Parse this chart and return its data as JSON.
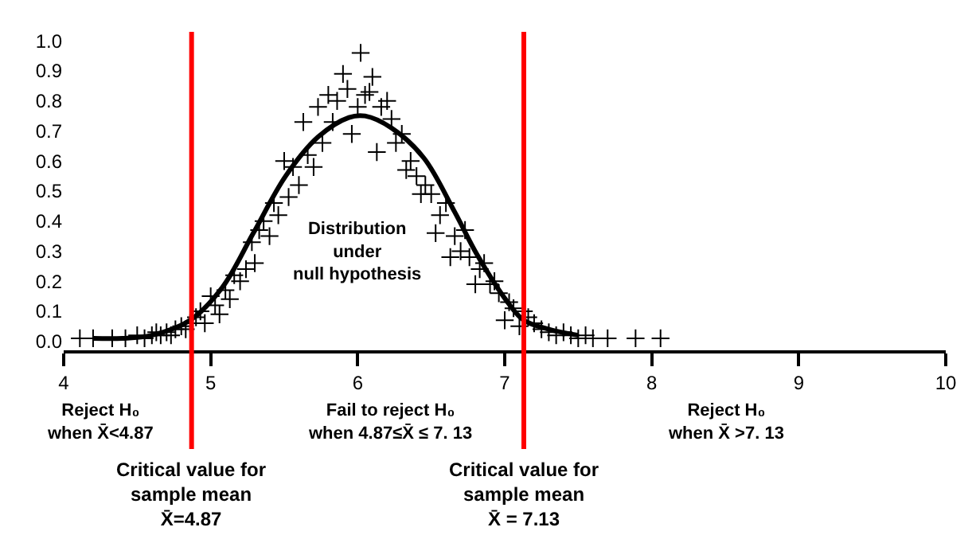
{
  "chart_data": {
    "type": "scatter",
    "series": [
      {
        "color": "#000000",
        "marker": "cross",
        "x": [
          4.11,
          4.2,
          4.33,
          4.42,
          4.5,
          4.55,
          4.6,
          4.63,
          4.66,
          4.7,
          4.73,
          4.76,
          4.8,
          4.83,
          4.86,
          4.9,
          4.93,
          4.96,
          5.0,
          5.03,
          5.06,
          5.1,
          5.13,
          5.16,
          5.2,
          5.24,
          5.28,
          5.3,
          5.33,
          5.36,
          5.4,
          5.43,
          5.46,
          5.5,
          5.53,
          5.56,
          5.6,
          5.63,
          5.66,
          5.7,
          5.73,
          5.76,
          5.8,
          5.83,
          5.86,
          5.9,
          5.93,
          5.96,
          6.0,
          6.02,
          6.05,
          6.08,
          6.1,
          6.13,
          6.16,
          6.2,
          6.23,
          6.26,
          6.3,
          6.33,
          6.36,
          6.4,
          6.43,
          6.46,
          6.5,
          6.53,
          6.56,
          6.6,
          6.63,
          6.66,
          6.7,
          6.73,
          6.76,
          6.8,
          6.83,
          6.86,
          6.9,
          6.93,
          6.96,
          7.0,
          7.03,
          7.06,
          7.1,
          7.13,
          7.16,
          7.2,
          7.25,
          7.3,
          7.35,
          7.4,
          7.45,
          7.5,
          7.55,
          7.6,
          7.7,
          7.89,
          8.06
        ],
        "values": [
          0.01,
          0.01,
          0.01,
          0.01,
          0.02,
          0.01,
          0.02,
          0.03,
          0.02,
          0.03,
          0.02,
          0.04,
          0.05,
          0.04,
          0.06,
          0.08,
          0.1,
          0.06,
          0.15,
          0.12,
          0.09,
          0.17,
          0.14,
          0.22,
          0.2,
          0.24,
          0.33,
          0.26,
          0.37,
          0.4,
          0.35,
          0.46,
          0.42,
          0.6,
          0.48,
          0.58,
          0.52,
          0.73,
          0.62,
          0.58,
          0.78,
          0.66,
          0.82,
          0.73,
          0.8,
          0.89,
          0.84,
          0.69,
          0.78,
          0.96,
          0.82,
          0.83,
          0.88,
          0.63,
          0.78,
          0.8,
          0.74,
          0.66,
          0.69,
          0.57,
          0.6,
          0.55,
          0.49,
          0.52,
          0.49,
          0.36,
          0.42,
          0.46,
          0.28,
          0.35,
          0.3,
          0.37,
          0.28,
          0.19,
          0.24,
          0.26,
          0.19,
          0.2,
          0.16,
          0.07,
          0.13,
          0.11,
          0.05,
          0.1,
          0.08,
          0.06,
          0.04,
          0.03,
          0.02,
          0.03,
          0.02,
          0.01,
          0.02,
          0.01,
          0.01,
          0.01,
          0.01
        ]
      },
      {
        "type": "line",
        "color": "#000000",
        "marker": "none",
        "line_style": "solid",
        "x": [
          4.2,
          4.4,
          4.6,
          4.86,
          5.08,
          5.29,
          5.51,
          5.73,
          5.94,
          6.05,
          6.23,
          6.45,
          6.66,
          6.81,
          7.02,
          7.13,
          7.3,
          7.5
        ],
        "values": [
          0.01,
          0.01,
          0.02,
          0.07,
          0.18,
          0.36,
          0.55,
          0.68,
          0.745,
          0.75,
          0.71,
          0.61,
          0.43,
          0.29,
          0.13,
          0.07,
          0.04,
          0.02
        ]
      }
    ],
    "xlim": [
      4,
      10
    ],
    "xticks": [
      4,
      5,
      6,
      7,
      8,
      9,
      10
    ],
    "ylim": [
      -0.03,
      1.03
    ],
    "yticks": [
      {
        "value": 0,
        "label": "0.0"
      },
      0.1,
      0.2,
      0.3,
      0.4,
      0.5,
      0.6,
      0.7,
      0.8,
      0.9,
      {
        "value": 1,
        "label": "1.0"
      }
    ],
    "ref_lines": [
      {
        "axis": "x",
        "value": 4.87,
        "label": "Critical value for\nsample mean\nX̄=4.87",
        "color": "#ff0000"
      },
      {
        "axis": "x",
        "value": 7.13,
        "label": "Critical value for\nsample mean\nX̄ = 7.13",
        "color": "#ff0000"
      }
    ],
    "annotations": [
      "Distribution\nunder\nnull hypothesis",
      "Reject H₀\nwhen X̄<4.87",
      "Fail to reject H₀\nwhen 4.87≤X̄ ≤ 7. 13",
      "Reject H₀\nwhen X̄ >7. 13"
    ]
  }
}
